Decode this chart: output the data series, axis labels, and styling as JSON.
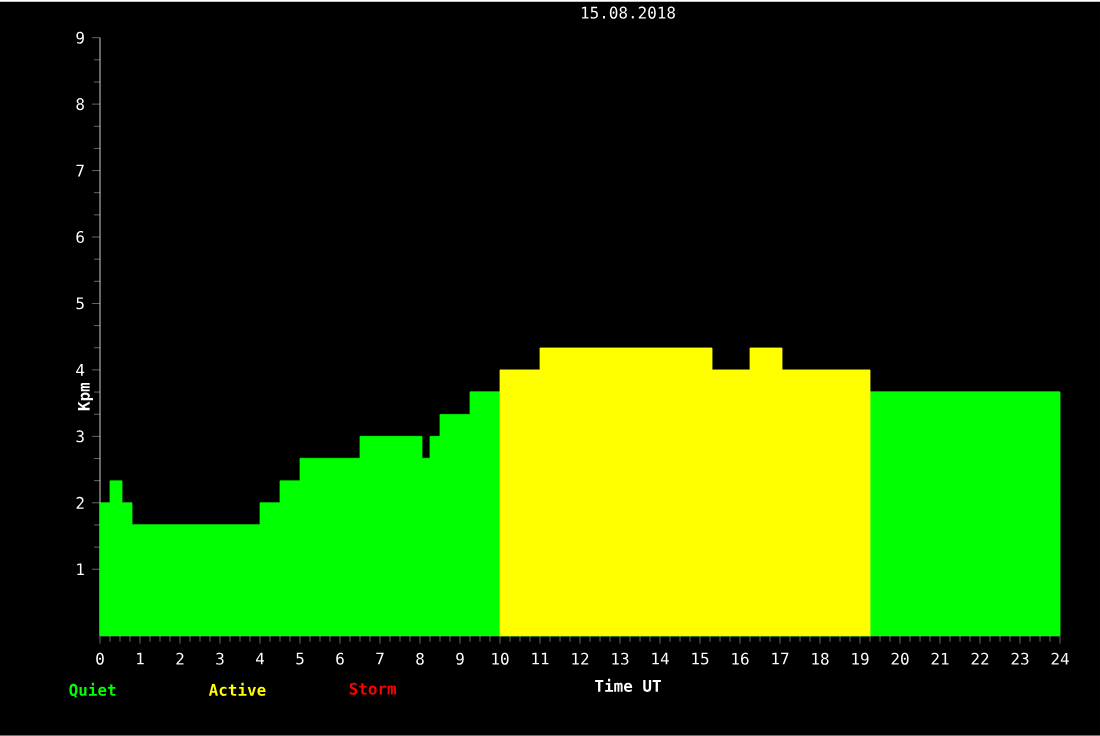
{
  "chart_data": {
    "type": "area",
    "title": "15.08.2018",
    "xlabel": "Time UT",
    "ylabel": "Kpm",
    "xlim": [
      0,
      24
    ],
    "ylim": [
      0,
      9
    ],
    "xticks": [
      0,
      1,
      2,
      3,
      4,
      5,
      6,
      7,
      8,
      9,
      10,
      11,
      12,
      13,
      14,
      15,
      16,
      17,
      18,
      19,
      20,
      21,
      22,
      23,
      24
    ],
    "yticks": [
      1,
      2,
      3,
      4,
      5,
      6,
      7,
      8,
      9
    ],
    "grid": false,
    "series": [
      {
        "name": "Quiet",
        "color": "#00ff00",
        "x": [
          0,
          0.25,
          0.25,
          0.55,
          0.55,
          0.8,
          0.8,
          4,
          4,
          4.5,
          4.5,
          5,
          5,
          6.5,
          6.5,
          8.05,
          8.05,
          8.25,
          8.25,
          8.5,
          8.5,
          9.25,
          9.25,
          10,
          10,
          19.25,
          19.25,
          24
        ],
        "values": [
          2,
          2,
          2.33,
          2.33,
          2,
          2,
          1.67,
          1.67,
          2,
          2,
          2.33,
          2.33,
          2.67,
          2.67,
          3,
          3,
          2.67,
          2.67,
          3,
          3,
          3.33,
          3.33,
          3.67,
          3.67,
          0,
          0,
          3.67,
          3.67
        ]
      },
      {
        "name": "Active",
        "color": "#ffff00",
        "x": [
          10,
          11,
          11,
          15.3,
          15.3,
          16.25,
          16.25,
          17.05,
          17.05,
          19.25
        ],
        "values": [
          4,
          4,
          4.33,
          4.33,
          4,
          4,
          4.33,
          4.33,
          4,
          4
        ]
      },
      {
        "name": "Storm",
        "color": "#ff0000"
      }
    ]
  }
}
